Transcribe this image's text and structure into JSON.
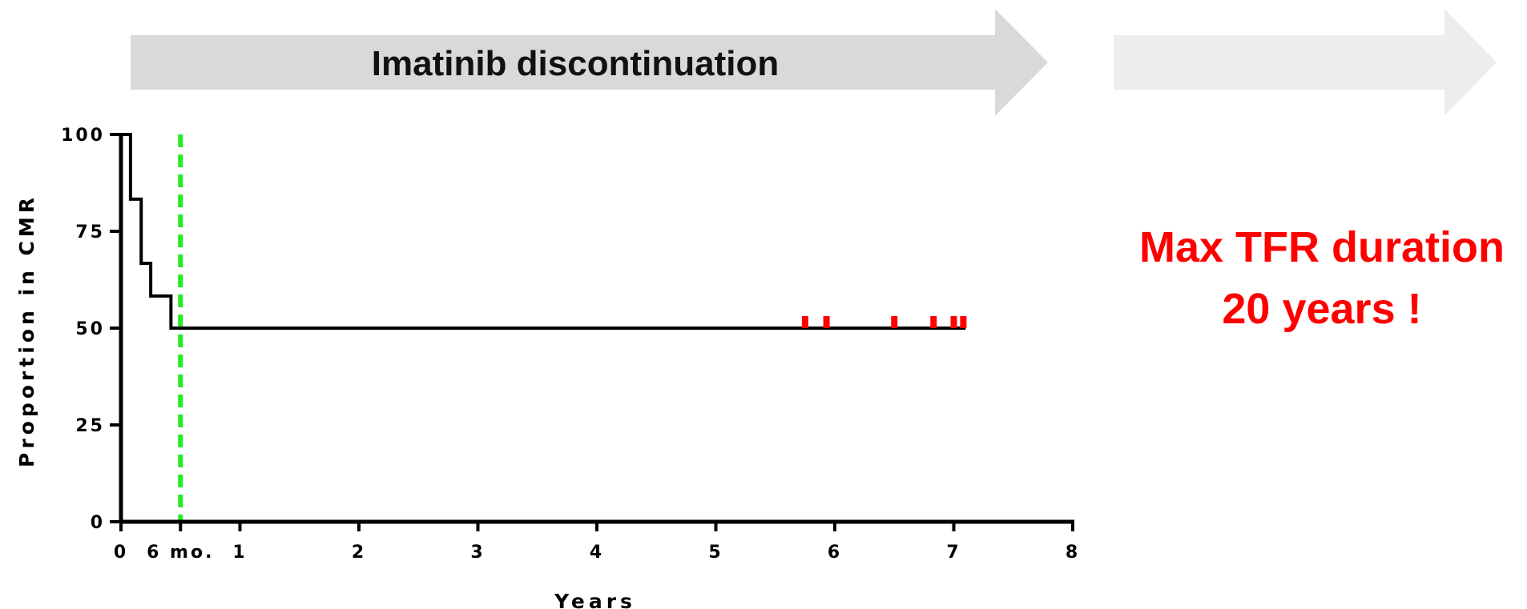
{
  "banner": {
    "main_label": "Imatinib discontinuation",
    "main_color": "#d9d9d9",
    "extension_color": "#ededed"
  },
  "annotation": {
    "line1": "Max TFR duration",
    "line2": "20 years !",
    "color": "#ff0000"
  },
  "chart_data": {
    "type": "line",
    "title": "",
    "xlabel": "Years",
    "ylabel": "Proportion in CMR",
    "xlim": [
      0,
      8
    ],
    "ylim": [
      0,
      100
    ],
    "x_ticks": [
      {
        "value": 0,
        "label": "0"
      },
      {
        "value": 0.5,
        "label": "6 mo."
      },
      {
        "value": 1,
        "label": "1"
      },
      {
        "value": 2,
        "label": "2"
      },
      {
        "value": 3,
        "label": "3"
      },
      {
        "value": 4,
        "label": "4"
      },
      {
        "value": 5,
        "label": "5"
      },
      {
        "value": 6,
        "label": "6"
      },
      {
        "value": 7,
        "label": "7"
      },
      {
        "value": 8,
        "label": "8"
      }
    ],
    "y_ticks": [
      {
        "value": 0,
        "label": "0"
      },
      {
        "value": 25,
        "label": "25"
      },
      {
        "value": 50,
        "label": "50"
      },
      {
        "value": 75,
        "label": "75"
      },
      {
        "value": 100,
        "label": "100"
      }
    ],
    "grid": false,
    "series": [
      {
        "style": "step",
        "color": "#000000",
        "points": [
          {
            "x": 0,
            "y": 100
          },
          {
            "x": 0.08,
            "y": 83.3
          },
          {
            "x": 0.17,
            "y": 66.7
          },
          {
            "x": 0.25,
            "y": 58.3
          },
          {
            "x": 0.42,
            "y": 50
          },
          {
            "x": 7.1,
            "y": 50
          }
        ],
        "censored_x": [
          5.75,
          5.93,
          6.5,
          6.83,
          7.0,
          7.08
        ],
        "censor_color": "#ff0000"
      }
    ],
    "reference_line": {
      "x": 0.5,
      "color": "#22ee22",
      "style": "dashed"
    }
  }
}
